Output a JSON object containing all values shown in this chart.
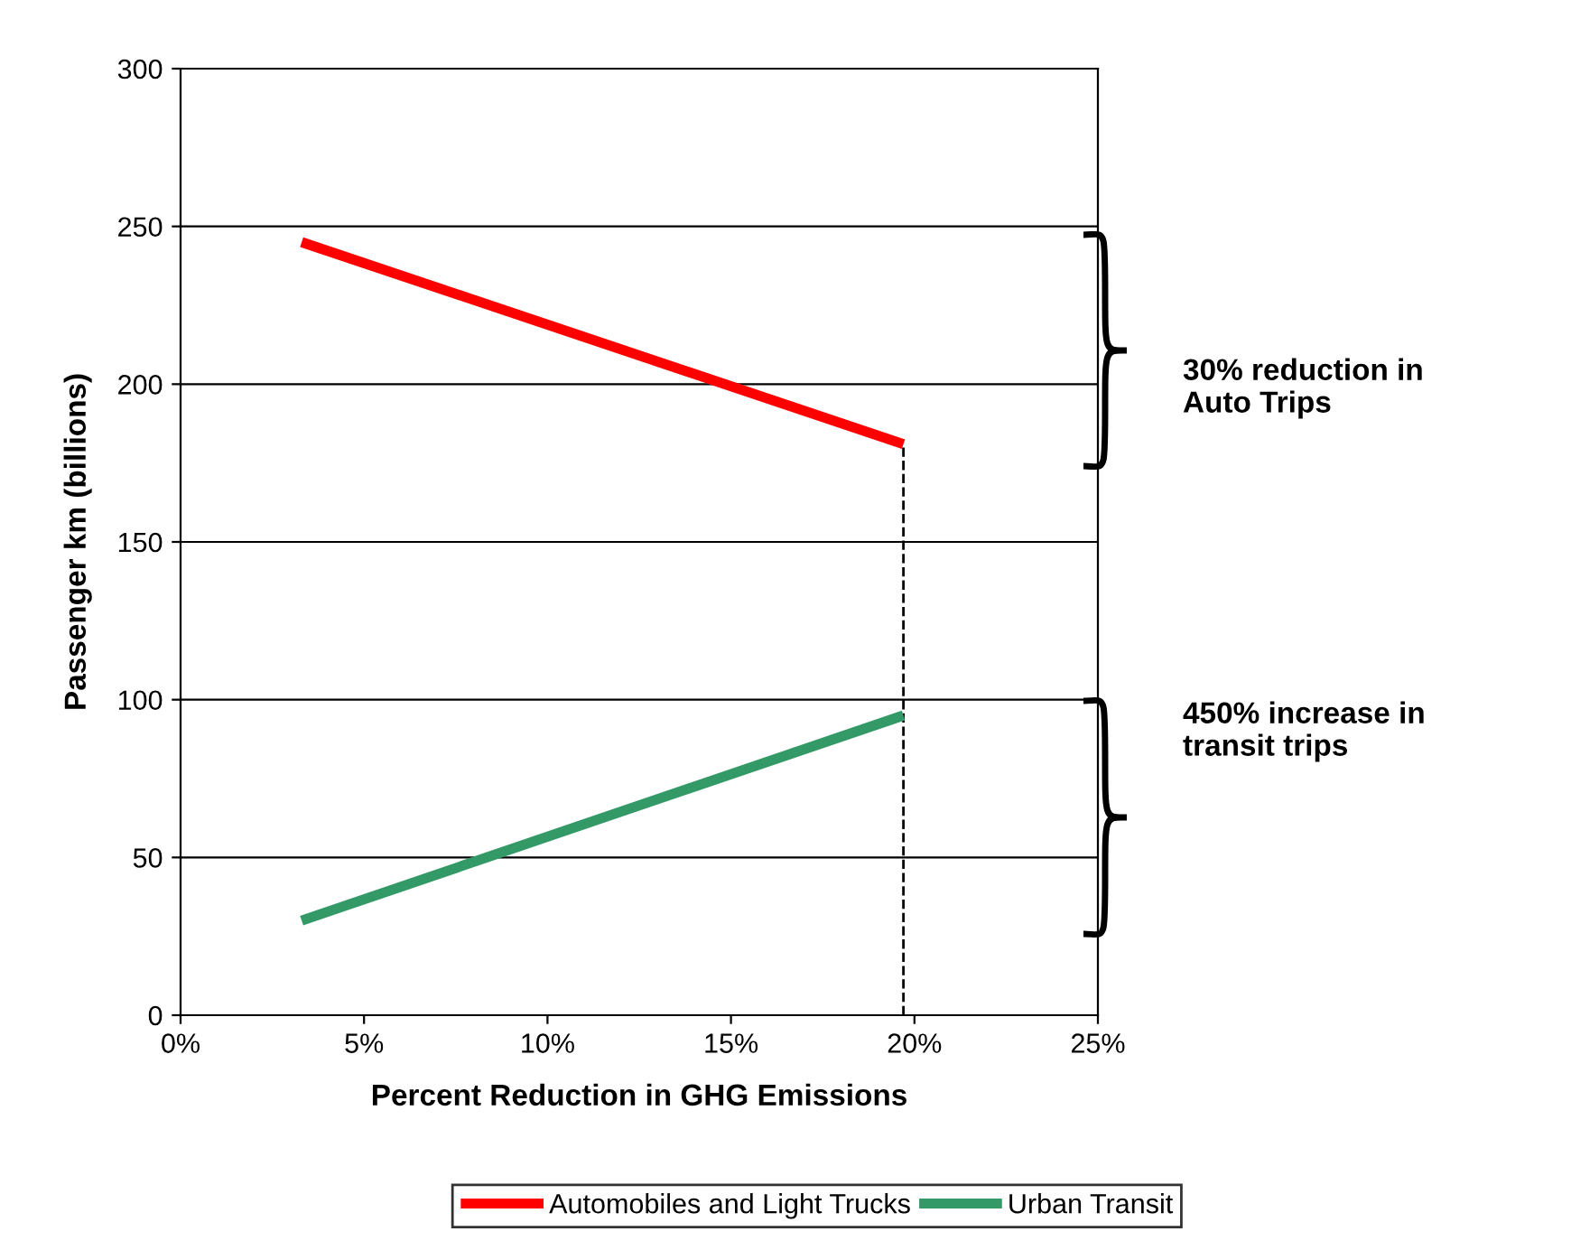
{
  "chart_data": {
    "type": "line",
    "xlabel": "Percent Reduction in GHG Emissions",
    "ylabel": "Passenger km (billions)",
    "x": [
      3.3,
      19.7
    ],
    "series": [
      {
        "name": "Automobiles and Light Trucks",
        "color": "#ff0000",
        "values": [
          245,
          181
        ]
      },
      {
        "name": "Urban Transit",
        "color": "#339966",
        "values": [
          30,
          95
        ]
      }
    ],
    "xlim": [
      0,
      25
    ],
    "xticks": [
      {
        "value": 0,
        "label": "0%"
      },
      {
        "value": 5,
        "label": "5%"
      },
      {
        "value": 10,
        "label": "10%"
      },
      {
        "value": 15,
        "label": "15%"
      },
      {
        "value": 20,
        "label": "20%"
      },
      {
        "value": 25,
        "label": "25%"
      }
    ],
    "ylim": [
      0,
      300
    ],
    "yticks": [
      0,
      50,
      100,
      150,
      200,
      250,
      300
    ],
    "ref_lines": [
      {
        "axis": "x",
        "value": 19.7,
        "color": "#000000",
        "line_style": "dashed"
      }
    ],
    "annotations": [
      "30% reduction in\nAuto Trips",
      "450% increase in\ntransit trips"
    ],
    "grid": "y",
    "legend": "bottom",
    "marker": "none",
    "line_style": "solid"
  }
}
